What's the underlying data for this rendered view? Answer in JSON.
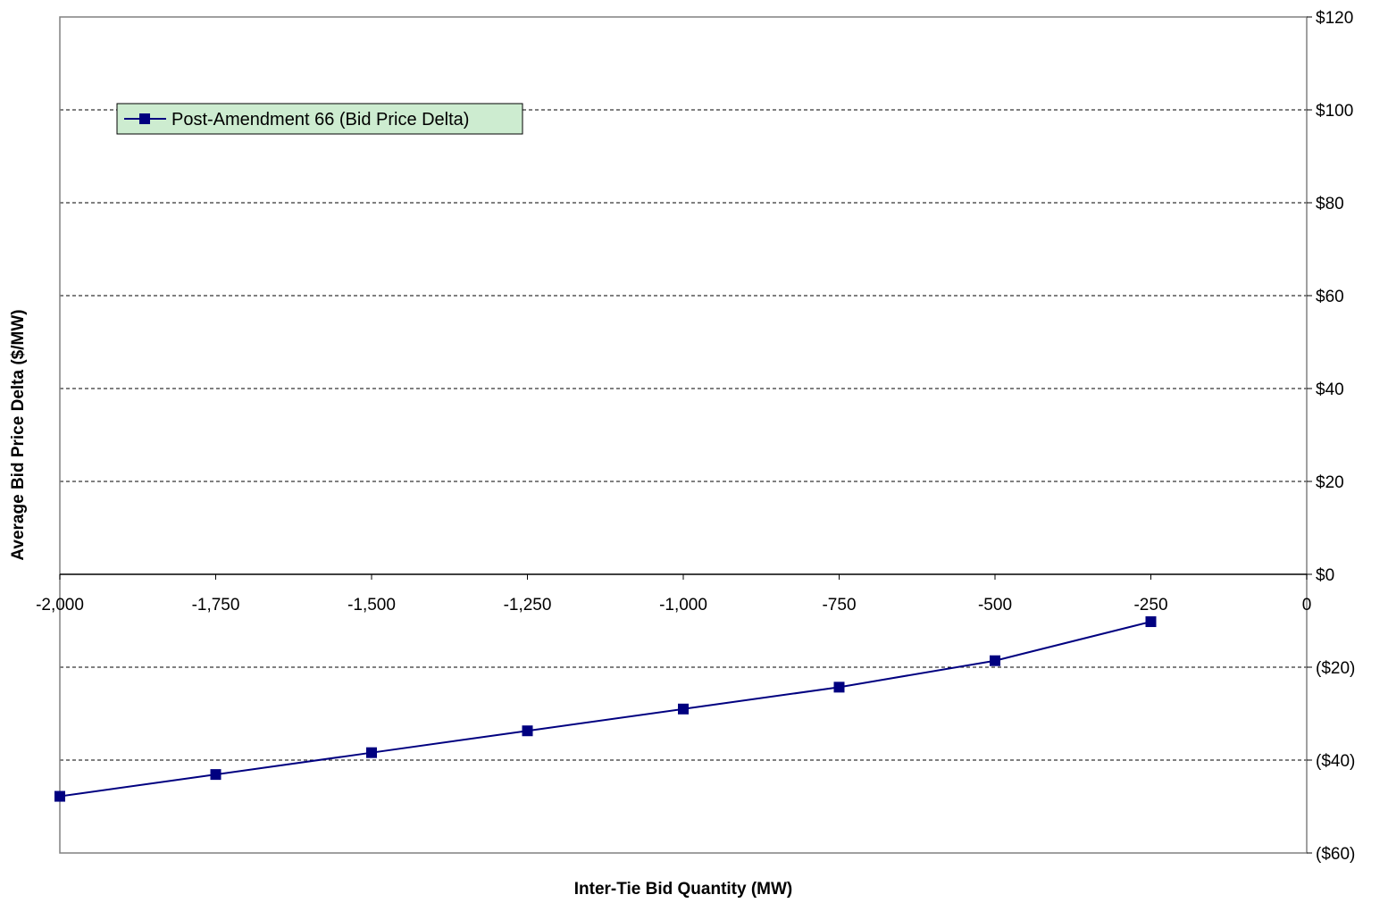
{
  "chart_data": {
    "type": "line",
    "title": "",
    "xlabel": "Inter-Tie Bid Quantity (MW)",
    "ylabel": "Average Bid Price Delta ($/MW)",
    "xlim": [
      -2000,
      0
    ],
    "ylim": [
      -60,
      120
    ],
    "x_ticks": [
      {
        "value": -2000,
        "label": "-2,000"
      },
      {
        "value": -1750,
        "label": "-1,750"
      },
      {
        "value": -1500,
        "label": "-1,500"
      },
      {
        "value": -1250,
        "label": "-1,250"
      },
      {
        "value": -1000,
        "label": "-1,000"
      },
      {
        "value": -750,
        "label": "-750"
      },
      {
        "value": -500,
        "label": "-500"
      },
      {
        "value": -250,
        "label": "-250"
      },
      {
        "value": 0,
        "label": "0"
      }
    ],
    "y_ticks": [
      {
        "value": 120,
        "label": "$120"
      },
      {
        "value": 100,
        "label": "$100"
      },
      {
        "value": 80,
        "label": "$80"
      },
      {
        "value": 60,
        "label": "$60"
      },
      {
        "value": 40,
        "label": "$40"
      },
      {
        "value": 20,
        "label": "$20"
      },
      {
        "value": 0,
        "label": "$0"
      },
      {
        "value": -20,
        "label": "($20)"
      },
      {
        "value": -40,
        "label": "($40)"
      },
      {
        "value": -60,
        "label": "($60)"
      }
    ],
    "y_axis_side": "right",
    "grid": "horizontal dashed",
    "legend_position": "top-left",
    "series": [
      {
        "name": "Post-Amendment 66 (Bid Price Delta)",
        "color": "#000080",
        "marker": "square",
        "x": [
          -2000,
          -1750,
          -1500,
          -1250,
          -1000,
          -750,
          -500,
          -250
        ],
        "y": [
          -47.8,
          -43.1,
          -38.4,
          -33.7,
          -29.0,
          -24.3,
          -18.6,
          -10.2
        ]
      }
    ]
  }
}
